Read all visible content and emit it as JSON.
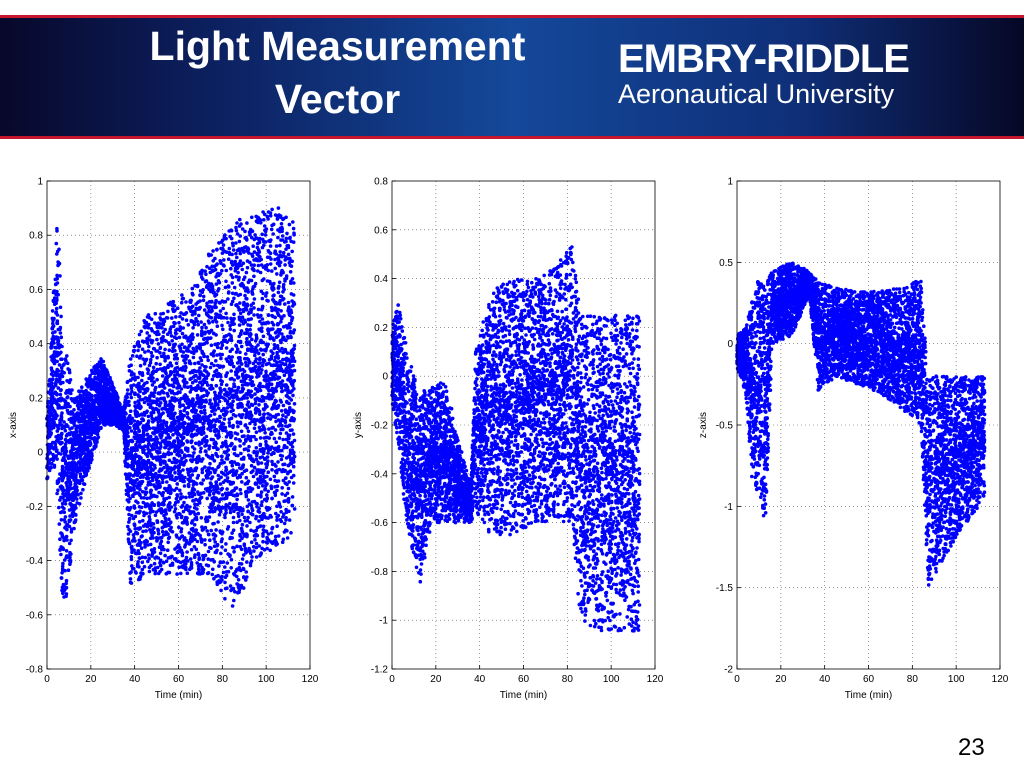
{
  "slide": {
    "title_line1": "Light Measurement",
    "title_line2": "Vector",
    "logo_name": "EMBRY-RIDDLE",
    "logo_subtitle": "Aeronautical University",
    "page_number": "23",
    "colors": {
      "banner": "#0c2f78",
      "accent": "#c8162e",
      "points": "#0000ff"
    }
  },
  "chart_data": [
    {
      "type": "scatter",
      "xlabel": "Time (min)",
      "ylabel": "x-axis",
      "xlim": [
        0,
        120
      ],
      "ylim": [
        -0.8,
        1
      ],
      "xticks": [
        "0",
        "20",
        "40",
        "60",
        "80",
        "100",
        "120"
      ],
      "yticks": [
        "-0.8",
        "-0.6",
        "-0.4",
        "-0.2",
        "0",
        "0.2",
        "0.4",
        "0.6",
        "0.8",
        "1"
      ],
      "grid": true,
      "envelope": [
        {
          "t": 0,
          "lo": -0.1,
          "hi": 0.15
        },
        {
          "t": 3,
          "lo": -0.05,
          "hi": 0.6
        },
        {
          "t": 5,
          "lo": -0.2,
          "hi": 0.95
        },
        {
          "t": 7,
          "lo": -0.55,
          "hi": 0.35
        },
        {
          "t": 9,
          "lo": -0.55,
          "hi": 0.4
        },
        {
          "t": 12,
          "lo": -0.3,
          "hi": 0.2
        },
        {
          "t": 16,
          "lo": -0.15,
          "hi": 0.25
        },
        {
          "t": 20,
          "lo": -0.05,
          "hi": 0.3
        },
        {
          "t": 25,
          "lo": 0.1,
          "hi": 0.35
        },
        {
          "t": 30,
          "lo": 0.1,
          "hi": 0.25
        },
        {
          "t": 35,
          "lo": 0.08,
          "hi": 0.15
        },
        {
          "t": 38,
          "lo": -0.5,
          "hi": 0.35
        },
        {
          "t": 45,
          "lo": -0.45,
          "hi": 0.5
        },
        {
          "t": 55,
          "lo": -0.45,
          "hi": 0.55
        },
        {
          "t": 65,
          "lo": -0.45,
          "hi": 0.6
        },
        {
          "t": 75,
          "lo": -0.45,
          "hi": 0.75
        },
        {
          "t": 85,
          "lo": -0.6,
          "hi": 0.85
        },
        {
          "t": 95,
          "lo": -0.4,
          "hi": 0.88
        },
        {
          "t": 105,
          "lo": -0.35,
          "hi": 0.92
        },
        {
          "t": 113,
          "lo": -0.3,
          "hi": 0.85
        }
      ]
    },
    {
      "type": "scatter",
      "xlabel": "Time (min)",
      "ylabel": "y-axis",
      "xlim": [
        0,
        120
      ],
      "ylim": [
        -1.2,
        0.8
      ],
      "xticks": [
        "0",
        "20",
        "40",
        "60",
        "80",
        "100",
        "120"
      ],
      "yticks": [
        "-1.2",
        "-1",
        "-0.8",
        "-0.6",
        "-0.4",
        "-0.2",
        "0",
        "0.2",
        "0.4",
        "0.6",
        "0.8"
      ],
      "grid": true,
      "envelope": [
        {
          "t": 0,
          "lo": -0.1,
          "hi": 0.2
        },
        {
          "t": 3,
          "lo": -0.3,
          "hi": 0.3
        },
        {
          "t": 6,
          "lo": -0.55,
          "hi": 0.15
        },
        {
          "t": 10,
          "lo": -0.75,
          "hi": 0.0
        },
        {
          "t": 13,
          "lo": -0.85,
          "hi": -0.05
        },
        {
          "t": 18,
          "lo": -0.6,
          "hi": -0.05
        },
        {
          "t": 24,
          "lo": -0.6,
          "hi": 0.0
        },
        {
          "t": 30,
          "lo": -0.6,
          "hi": -0.25
        },
        {
          "t": 36,
          "lo": -0.6,
          "hi": -0.45
        },
        {
          "t": 38,
          "lo": -0.55,
          "hi": 0.1
        },
        {
          "t": 45,
          "lo": -0.65,
          "hi": 0.35
        },
        {
          "t": 55,
          "lo": -0.65,
          "hi": 0.4
        },
        {
          "t": 65,
          "lo": -0.6,
          "hi": 0.4
        },
        {
          "t": 75,
          "lo": -0.6,
          "hi": 0.45
        },
        {
          "t": 82,
          "lo": -0.6,
          "hi": 0.55
        },
        {
          "t": 86,
          "lo": -1.0,
          "hi": 0.25
        },
        {
          "t": 95,
          "lo": -1.05,
          "hi": 0.25
        },
        {
          "t": 105,
          "lo": -1.05,
          "hi": 0.25
        },
        {
          "t": 113,
          "lo": -1.05,
          "hi": 0.25
        }
      ]
    },
    {
      "type": "scatter",
      "xlabel": "Time (min)",
      "ylabel": "z-axis",
      "xlim": [
        0,
        120
      ],
      "ylim": [
        -2,
        1
      ],
      "xticks": [
        "0",
        "20",
        "40",
        "60",
        "80",
        "100",
        "120"
      ],
      "yticks": [
        "-2",
        "-1.5",
        "-1",
        "-0.5",
        "0",
        "0.5",
        "1"
      ],
      "grid": true,
      "envelope": [
        {
          "t": 0,
          "lo": -0.15,
          "hi": 0.05
        },
        {
          "t": 4,
          "lo": -0.3,
          "hi": 0.1
        },
        {
          "t": 7,
          "lo": -0.9,
          "hi": 0.3
        },
        {
          "t": 10,
          "lo": -0.9,
          "hi": 0.4
        },
        {
          "t": 13,
          "lo": -1.15,
          "hi": 0.35
        },
        {
          "t": 16,
          "lo": 0.0,
          "hi": 0.45
        },
        {
          "t": 25,
          "lo": 0.05,
          "hi": 0.5
        },
        {
          "t": 33,
          "lo": 0.3,
          "hi": 0.45
        },
        {
          "t": 37,
          "lo": -0.3,
          "hi": 0.38
        },
        {
          "t": 45,
          "lo": -0.2,
          "hi": 0.35
        },
        {
          "t": 55,
          "lo": -0.25,
          "hi": 0.32
        },
        {
          "t": 65,
          "lo": -0.3,
          "hi": 0.32
        },
        {
          "t": 75,
          "lo": -0.4,
          "hi": 0.35
        },
        {
          "t": 84,
          "lo": -0.5,
          "hi": 0.4
        },
        {
          "t": 87,
          "lo": -1.5,
          "hi": -0.2
        },
        {
          "t": 95,
          "lo": -1.3,
          "hi": -0.2
        },
        {
          "t": 105,
          "lo": -1.1,
          "hi": -0.2
        },
        {
          "t": 113,
          "lo": -0.95,
          "hi": -0.2
        }
      ]
    }
  ]
}
